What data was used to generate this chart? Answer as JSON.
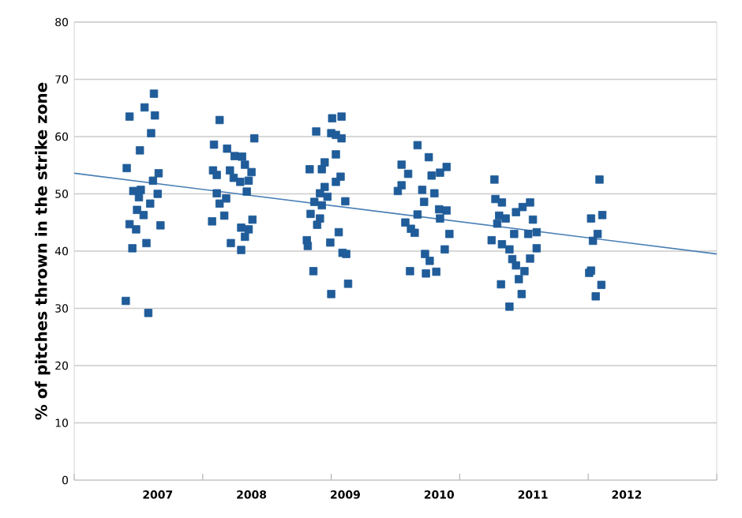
{
  "chart_data": {
    "type": "scatter",
    "ylabel": "% of pitches thrown in the strike zone",
    "xlim": [
      2006.11,
      2012.96
    ],
    "ylim": [
      0,
      80
    ],
    "xticks": [
      {
        "value": 2006.11,
        "label": null
      },
      {
        "value": 2007.48,
        "label": null
      },
      {
        "value": 2008.85,
        "label": null
      },
      {
        "value": 2010.22,
        "label": null
      },
      {
        "value": 2011.59,
        "label": null
      },
      {
        "value": 2012.96,
        "label": null
      },
      2007,
      2008,
      2009,
      2010,
      2011,
      2012
    ],
    "yticks": [
      0,
      10,
      20,
      30,
      40,
      50,
      60,
      70,
      80
    ],
    "grid": "y",
    "marker": "square",
    "series": [
      {
        "type": "scatter",
        "color": "#1f5c99",
        "x": [
          2006.96,
          2006.7,
          2006.86,
          2006.97,
          2006.93,
          2006.81,
          2006.67,
          2007.01,
          2006.95,
          2006.74,
          2006.82,
          2007.0,
          2006.8,
          2006.92,
          2006.78,
          2006.85,
          2006.7,
          2006.77,
          2007.03,
          2006.73,
          2006.88,
          2006.66,
          2006.9,
          2007.66,
          2007.6,
          2008.03,
          2007.74,
          2007.82,
          2007.9,
          2007.93,
          2007.59,
          2007.63,
          2007.77,
          2008.0,
          2007.81,
          2007.88,
          2007.97,
          2007.63,
          2007.73,
          2007.66,
          2007.95,
          2007.71,
          2007.58,
          2008.01,
          2007.89,
          2007.97,
          2007.93,
          2007.78,
          2007.89,
          2008.86,
          2008.96,
          2008.69,
          2008.85,
          2008.9,
          2008.96,
          2008.9,
          2008.78,
          2008.75,
          2008.62,
          2008.95,
          2008.9,
          2008.78,
          2008.73,
          2008.81,
          2008.67,
          2008.75,
          2009.0,
          2008.63,
          2008.73,
          2008.7,
          2008.93,
          2008.59,
          2008.6,
          2008.84,
          2008.97,
          2009.01,
          2008.66,
          2009.03,
          2008.85,
          2009.77,
          2009.89,
          2009.6,
          2009.67,
          2010.08,
          2009.92,
          2010.01,
          2009.6,
          2009.56,
          2009.82,
          2009.95,
          2009.84,
          2010.0,
          2010.08,
          2010.01,
          2009.77,
          2009.64,
          2009.7,
          2009.74,
          2010.11,
          2010.06,
          2009.85,
          2009.9,
          2009.69,
          2009.86,
          2009.97,
          2010.59,
          2010.6,
          2010.67,
          2010.97,
          2010.89,
          2010.82,
          2010.64,
          2010.71,
          2011.0,
          2010.62,
          2010.8,
          2010.95,
          2011.04,
          2010.56,
          2010.67,
          2010.75,
          2011.04,
          2010.78,
          2010.82,
          2010.97,
          2010.91,
          2010.85,
          2010.66,
          2010.88,
          2010.75,
          2011.71,
          2011.62,
          2011.74,
          2011.69,
          2011.64,
          2011.62,
          2011.6,
          2011.73,
          2011.67
        ],
        "values": [
          67.5,
          63.5,
          65.1,
          63.7,
          60.6,
          57.6,
          54.5,
          53.6,
          52.3,
          50.5,
          50.7,
          50.0,
          49.4,
          48.3,
          47.2,
          46.3,
          44.7,
          43.8,
          44.5,
          40.5,
          41.4,
          31.3,
          29.2,
          62.9,
          58.6,
          59.7,
          57.9,
          56.6,
          56.5,
          55.1,
          54.1,
          53.3,
          54.1,
          53.8,
          52.8,
          52.1,
          52.3,
          50.1,
          49.2,
          48.3,
          50.4,
          46.2,
          45.2,
          45.5,
          44.1,
          43.8,
          42.5,
          41.4,
          40.2,
          63.2,
          63.5,
          60.9,
          60.6,
          60.3,
          59.7,
          56.9,
          55.5,
          54.3,
          54.3,
          53.0,
          52.1,
          51.2,
          50.1,
          49.5,
          48.6,
          48.0,
          48.7,
          46.5,
          45.7,
          44.6,
          43.3,
          41.9,
          40.9,
          41.5,
          39.7,
          39.5,
          36.5,
          34.3,
          32.5,
          58.5,
          56.4,
          55.1,
          53.5,
          54.7,
          53.2,
          53.7,
          51.5,
          50.5,
          50.7,
          50.1,
          48.6,
          47.3,
          47.1,
          45.7,
          46.4,
          45.0,
          43.9,
          43.2,
          43.0,
          40.3,
          39.5,
          38.3,
          36.5,
          36.1,
          36.4,
          52.5,
          49.1,
          48.5,
          48.5,
          47.7,
          46.8,
          46.2,
          45.7,
          45.5,
          44.8,
          43.0,
          43.0,
          43.3,
          41.9,
          41.2,
          40.3,
          40.5,
          38.6,
          37.5,
          38.7,
          36.5,
          35.1,
          34.2,
          32.5,
          30.3,
          52.5,
          45.7,
          46.3,
          43.0,
          41.8,
          36.6,
          36.2,
          34.1,
          32.1
        ]
      },
      {
        "type": "line",
        "marker": "none",
        "color": "#4a7fb5",
        "x": [
          2006.11,
          2012.96
        ],
        "values": [
          53.6,
          39.5
        ]
      }
    ]
  }
}
